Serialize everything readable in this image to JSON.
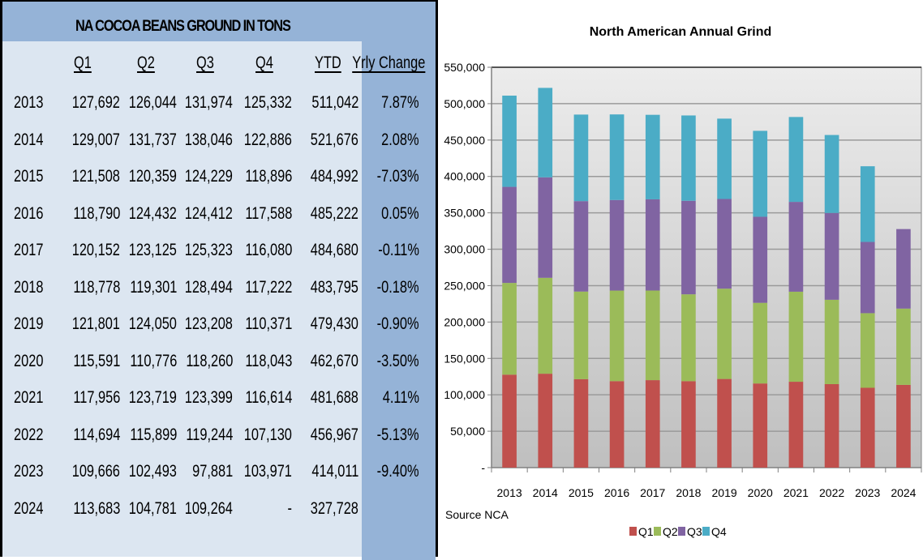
{
  "table": {
    "title": "NA COCOA BEANS GROUND IN TONS",
    "columns": [
      "Q1",
      "Q2",
      "Q3",
      "Q4",
      "YTD",
      "Yrly Change"
    ],
    "rows": [
      {
        "year": "2013",
        "q1": "127,692",
        "q2": "126,044",
        "q3": "131,974",
        "q4": "125,332",
        "ytd": "511,042",
        "change": "7.87%"
      },
      {
        "year": "2014",
        "q1": "129,007",
        "q2": "131,737",
        "q3": "138,046",
        "q4": "122,886",
        "ytd": "521,676",
        "change": "2.08%"
      },
      {
        "year": "2015",
        "q1": "121,508",
        "q2": "120,359",
        "q3": "124,229",
        "q4": "118,896",
        "ytd": "484,992",
        "change": "-7.03%"
      },
      {
        "year": "2016",
        "q1": "118,790",
        "q2": "124,432",
        "q3": "124,412",
        "q4": "117,588",
        "ytd": "485,222",
        "change": "0.05%"
      },
      {
        "year": "2017",
        "q1": "120,152",
        "q2": "123,125",
        "q3": "125,323",
        "q4": "116,080",
        "ytd": "484,680",
        "change": "-0.11%"
      },
      {
        "year": "2018",
        "q1": "118,778",
        "q2": "119,301",
        "q3": "128,494",
        "q4": "117,222",
        "ytd": "483,795",
        "change": "-0.18%"
      },
      {
        "year": "2019",
        "q1": "121,801",
        "q2": "124,050",
        "q3": "123,208",
        "q4": "110,371",
        "ytd": "479,430",
        "change": "-0.90%"
      },
      {
        "year": "2020",
        "q1": "115,591",
        "q2": "110,776",
        "q3": "118,260",
        "q4": "118,043",
        "ytd": "462,670",
        "change": "-3.50%"
      },
      {
        "year": "2021",
        "q1": "117,956",
        "q2": "123,719",
        "q3": "123,399",
        "q4": "116,614",
        "ytd": "481,688",
        "change": "4.11%"
      },
      {
        "year": "2022",
        "q1": "114,694",
        "q2": "115,899",
        "q3": "119,244",
        "q4": "107,130",
        "ytd": "456,967",
        "change": "-5.13%"
      },
      {
        "year": "2023",
        "q1": "109,666",
        "q2": "102,493",
        "q3": "97,881",
        "q4": "103,971",
        "ytd": "414,011",
        "change": "-9.40%"
      },
      {
        "year": "2024",
        "q1": "113,683",
        "q2": "104,781",
        "q3": "109,264",
        "q4": "-",
        "ytd": "327,728",
        "change": ""
      }
    ],
    "colors": {
      "header_bg": "#95b3d7",
      "row_bg": "#dce6f1",
      "change_col_bg": "#95b3d7"
    }
  },
  "chart_data": {
    "type": "bar",
    "stacked": true,
    "title": "North American Annual Grind",
    "xlabel": "",
    "ylabel": "",
    "note": "Source NCA",
    "categories": [
      "2013",
      "2014",
      "2015",
      "2016",
      "2017",
      "2018",
      "2019",
      "2020",
      "2021",
      "2022",
      "2023",
      "2024"
    ],
    "series": [
      {
        "name": "Q1",
        "color": "#c0504d",
        "values": [
          127692,
          129007,
          121508,
          118790,
          120152,
          118778,
          121801,
          115591,
          117956,
          114694,
          109666,
          113683
        ]
      },
      {
        "name": "Q2",
        "color": "#9bbb59",
        "values": [
          126044,
          131737,
          120359,
          124432,
          123125,
          119301,
          124050,
          110776,
          123719,
          115899,
          102493,
          104781
        ]
      },
      {
        "name": "Q3",
        "color": "#8064a2",
        "values": [
          131974,
          138046,
          124229,
          124412,
          125323,
          128494,
          123208,
          118260,
          123399,
          119244,
          97881,
          109264
        ]
      },
      {
        "name": "Q4",
        "color": "#4bacc6",
        "values": [
          125332,
          122886,
          118896,
          117588,
          116080,
          117222,
          110371,
          118043,
          116614,
          107130,
          103971,
          0
        ]
      }
    ],
    "ylim": [
      0,
      550000
    ],
    "yticks": [
      0,
      50000,
      100000,
      150000,
      200000,
      250000,
      300000,
      350000,
      400000,
      450000,
      500000,
      550000
    ],
    "ytick_labels": [
      "-",
      "50,000",
      "100,000",
      "150,000",
      "200,000",
      "250,000",
      "300,000",
      "350,000",
      "400,000",
      "450,000",
      "500,000",
      "550,000"
    ],
    "grid": true,
    "legend": {
      "position": "bottom",
      "entries": [
        "Q1",
        "Q2",
        "Q3",
        "Q4"
      ]
    }
  }
}
